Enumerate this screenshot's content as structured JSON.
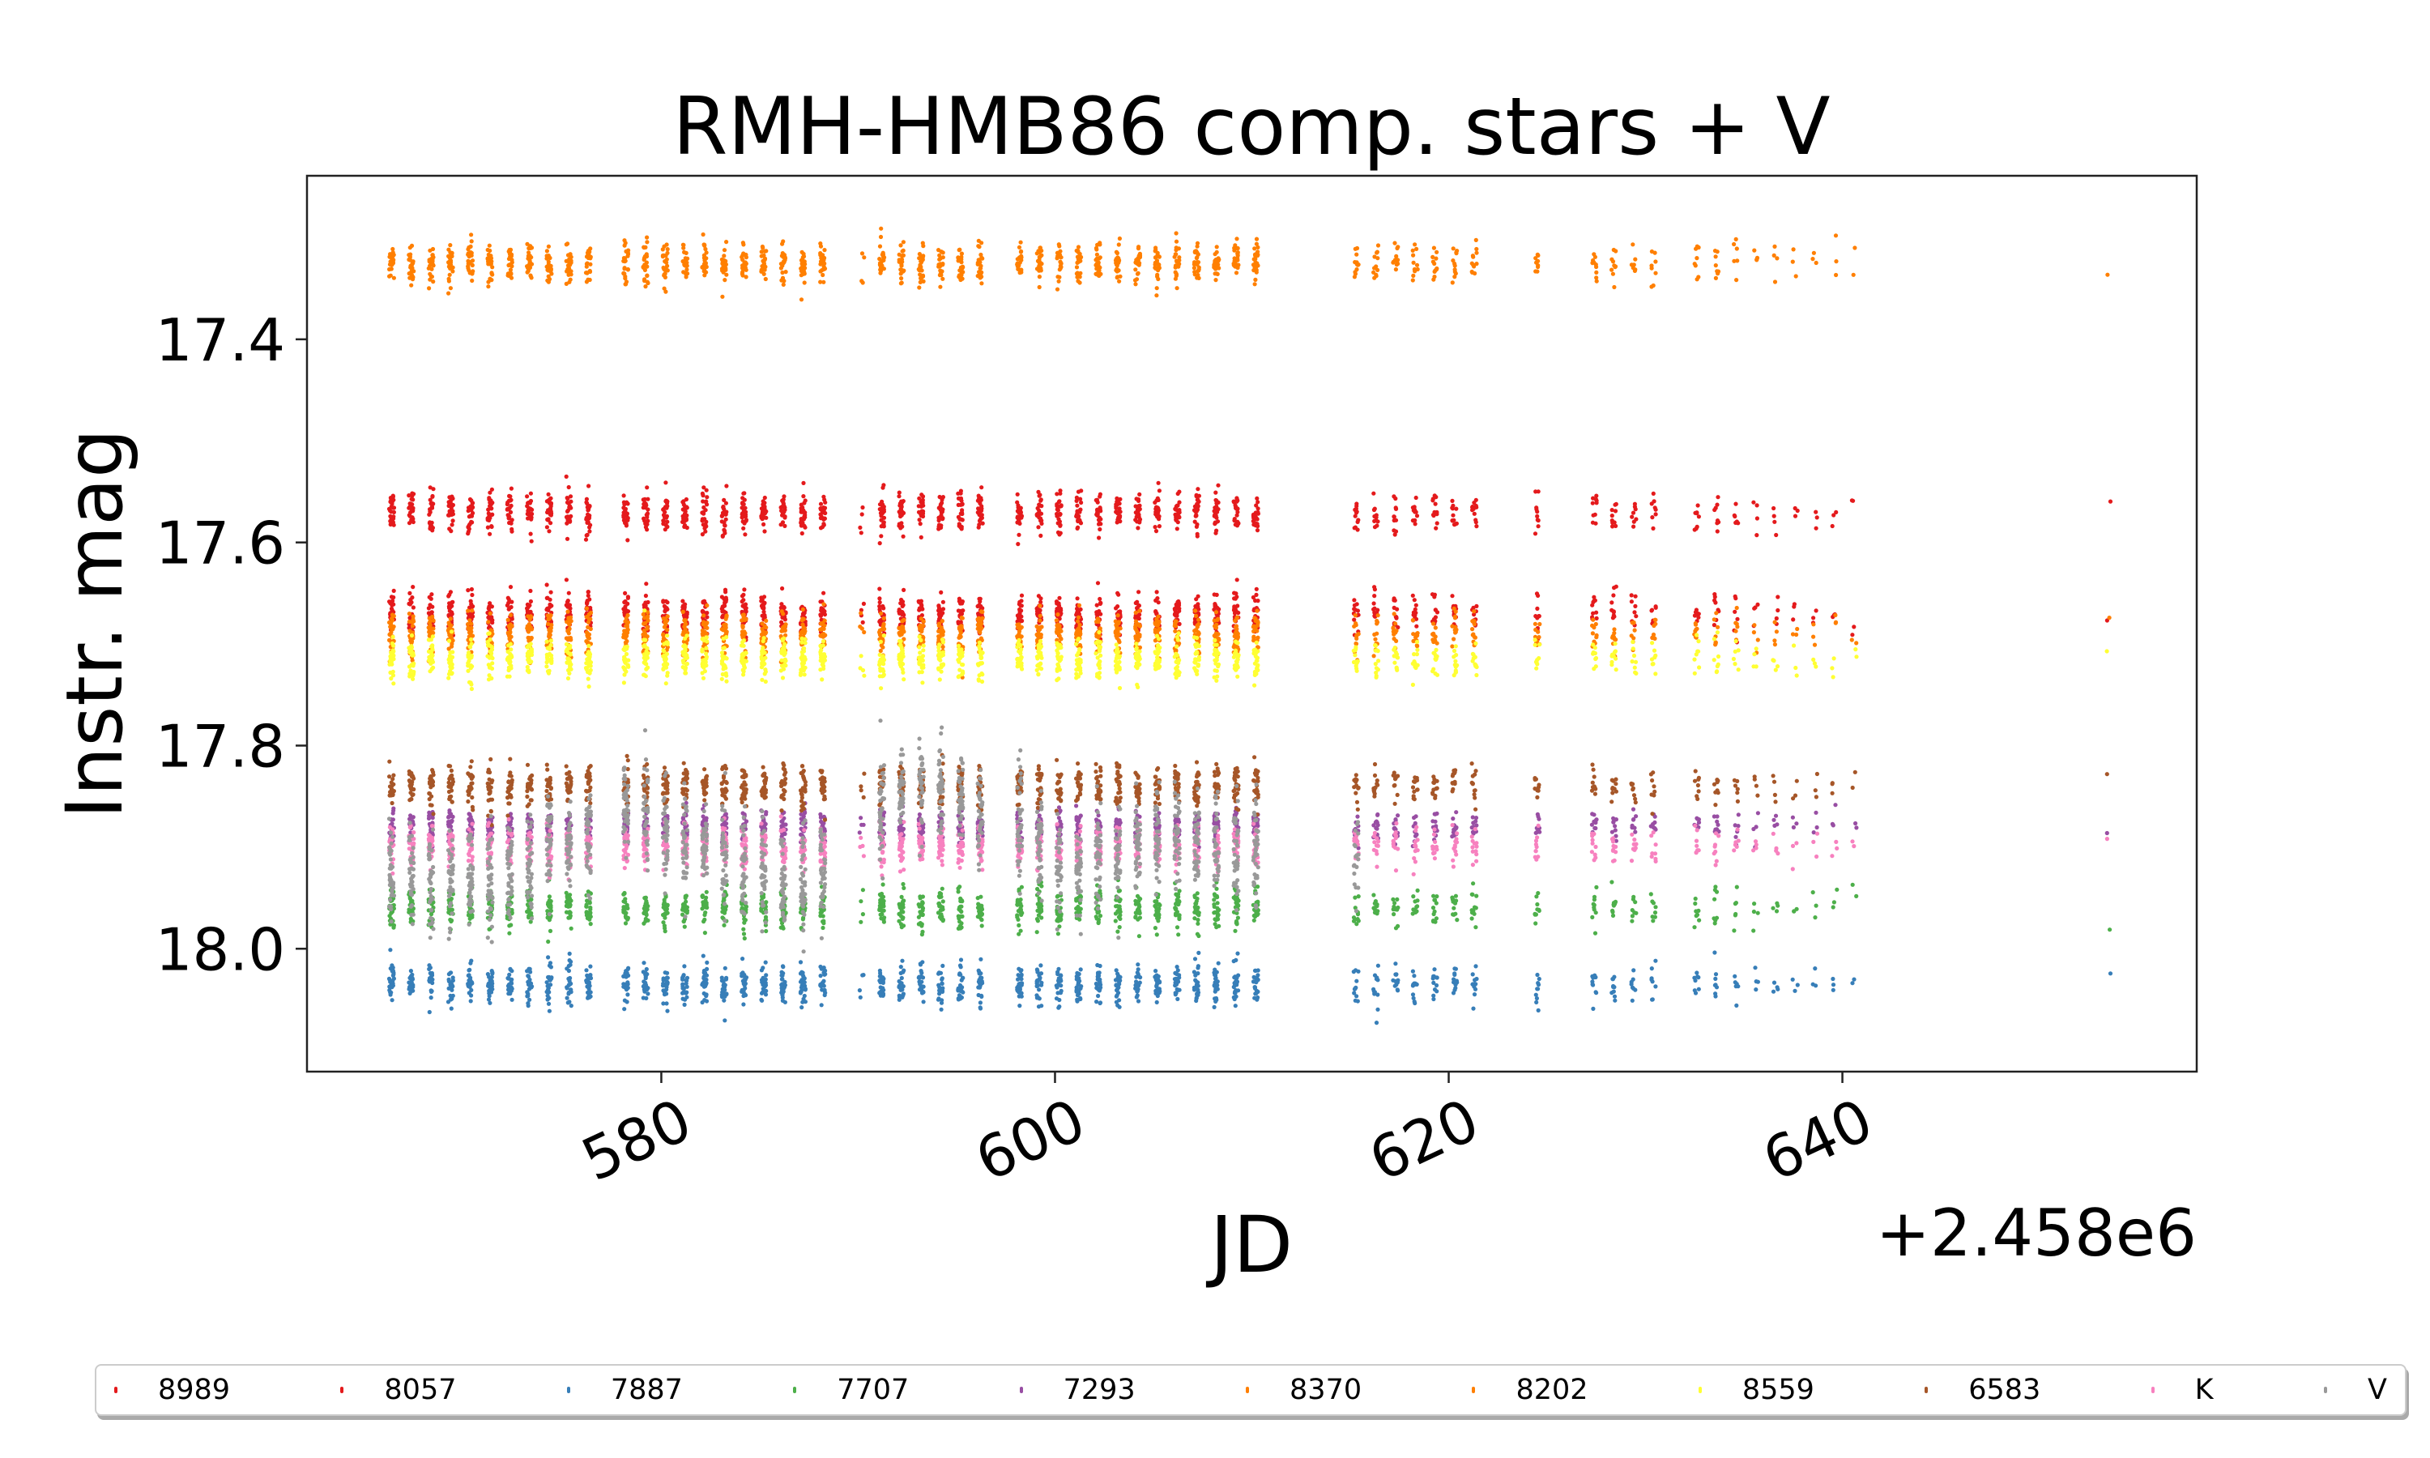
{
  "chart_data": {
    "type": "scatter",
    "title": "RMH-HMB86 comp. stars + V",
    "xlabel": "JD",
    "ylabel": "Instr. mag",
    "x_offset_label": "+2.458e6",
    "xlim": [
      562,
      658
    ],
    "ylim": [
      18.121,
      17.239
    ],
    "y_inverted": true,
    "xticks": [
      580,
      600,
      620,
      640
    ],
    "xtick_labels": [
      "580",
      "600",
      "620",
      "640"
    ],
    "yticks": [
      17.4,
      17.6,
      17.8,
      18.0
    ],
    "ytick_labels": [
      "17.4",
      "17.6",
      "17.8",
      "18.0"
    ],
    "grid": false,
    "legend_placement": "bottom-outside",
    "series": [
      {
        "name": "8989",
        "color": "#e41a1c",
        "mean_mag": 17.57,
        "scatter": 0.01
      },
      {
        "name": "8057",
        "color": "#e41a1c",
        "mean_mag": 17.67,
        "scatter": 0.01
      },
      {
        "name": "7887",
        "color": "#377eb8",
        "mean_mag": 18.035,
        "scatter": 0.01
      },
      {
        "name": "7707",
        "color": "#4daf4a",
        "mean_mag": 17.96,
        "scatter": 0.01
      },
      {
        "name": "7293",
        "color": "#984ea3",
        "mean_mag": 17.88,
        "scatter": 0.008
      },
      {
        "name": "8370",
        "color": "#ff7f00",
        "mean_mag": 17.325,
        "scatter": 0.01
      },
      {
        "name": "8202",
        "color": "#ff7f00",
        "mean_mag": 17.69,
        "scatter": 0.01
      },
      {
        "name": "8559",
        "color": "#ffff33",
        "mean_mag": 17.715,
        "scatter": 0.01
      },
      {
        "name": "6583",
        "color": "#a65628",
        "mean_mag": 17.84,
        "scatter": 0.01
      },
      {
        "name": "K",
        "color": "#f781bf",
        "mean_mag": 17.9,
        "scatter": 0.01
      },
      {
        "name": "V",
        "color": "#999999",
        "mean_mag": null,
        "scatter": 0.025
      }
    ],
    "nights": [
      [
        566.3,
        25,
        17.93
      ],
      [
        567.3,
        25,
        17.93
      ],
      [
        568.3,
        25,
        17.93
      ],
      [
        569.3,
        25,
        17.93
      ],
      [
        570.3,
        25,
        17.93
      ],
      [
        571.3,
        25,
        17.93
      ],
      [
        572.3,
        25,
        17.93
      ],
      [
        573.3,
        25,
        17.92
      ],
      [
        574.3,
        25,
        17.89
      ],
      [
        575.3,
        25,
        17.9
      ],
      [
        576.3,
        25,
        17.89
      ],
      [
        578.2,
        25,
        17.85
      ],
      [
        579.2,
        25,
        17.86
      ],
      [
        580.2,
        25,
        17.88
      ],
      [
        581.2,
        25,
        17.89
      ],
      [
        582.2,
        25,
        17.9
      ],
      [
        583.2,
        25,
        17.91
      ],
      [
        584.2,
        25,
        17.92
      ],
      [
        585.2,
        25,
        17.93
      ],
      [
        586.2,
        25,
        17.94
      ],
      [
        587.2,
        25,
        17.94
      ],
      [
        588.2,
        25,
        17.93
      ],
      [
        590.2,
        4,
        null
      ],
      [
        591.2,
        25,
        17.86
      ],
      [
        592.2,
        25,
        17.85
      ],
      [
        593.2,
        25,
        17.84
      ],
      [
        594.2,
        25,
        17.84
      ],
      [
        595.2,
        25,
        17.85
      ],
      [
        596.2,
        25,
        17.87
      ],
      [
        598.2,
        25,
        17.88
      ],
      [
        599.2,
        25,
        17.9
      ],
      [
        600.2,
        25,
        17.92
      ],
      [
        601.2,
        25,
        17.92
      ],
      [
        602.2,
        25,
        17.91
      ],
      [
        603.2,
        25,
        17.9
      ],
      [
        604.2,
        25,
        17.9
      ],
      [
        605.2,
        25,
        17.89
      ],
      [
        606.2,
        25,
        17.89
      ],
      [
        607.2,
        25,
        17.9
      ],
      [
        608.2,
        25,
        17.9
      ],
      [
        609.2,
        25,
        17.9
      ],
      [
        610.2,
        25,
        17.9
      ],
      [
        615.3,
        12,
        17.91
      ],
      [
        616.3,
        12,
        null
      ],
      [
        617.3,
        12,
        null
      ],
      [
        618.3,
        12,
        null
      ],
      [
        619.3,
        12,
        null
      ],
      [
        620.3,
        12,
        null
      ],
      [
        621.3,
        12,
        null
      ],
      [
        624.5,
        10,
        null
      ],
      [
        627.4,
        10,
        null
      ],
      [
        628.4,
        10,
        null
      ],
      [
        629.4,
        8,
        null
      ],
      [
        630.4,
        8,
        null
      ],
      [
        632.6,
        8,
        null
      ],
      [
        633.6,
        8,
        null
      ],
      [
        634.6,
        6,
        null
      ],
      [
        635.6,
        4,
        null
      ],
      [
        636.6,
        4,
        null
      ],
      [
        637.6,
        3,
        null
      ],
      [
        638.6,
        3,
        null
      ],
      [
        639.6,
        3,
        null
      ],
      [
        640.6,
        2,
        null
      ],
      [
        653.5,
        1,
        null
      ]
    ]
  }
}
